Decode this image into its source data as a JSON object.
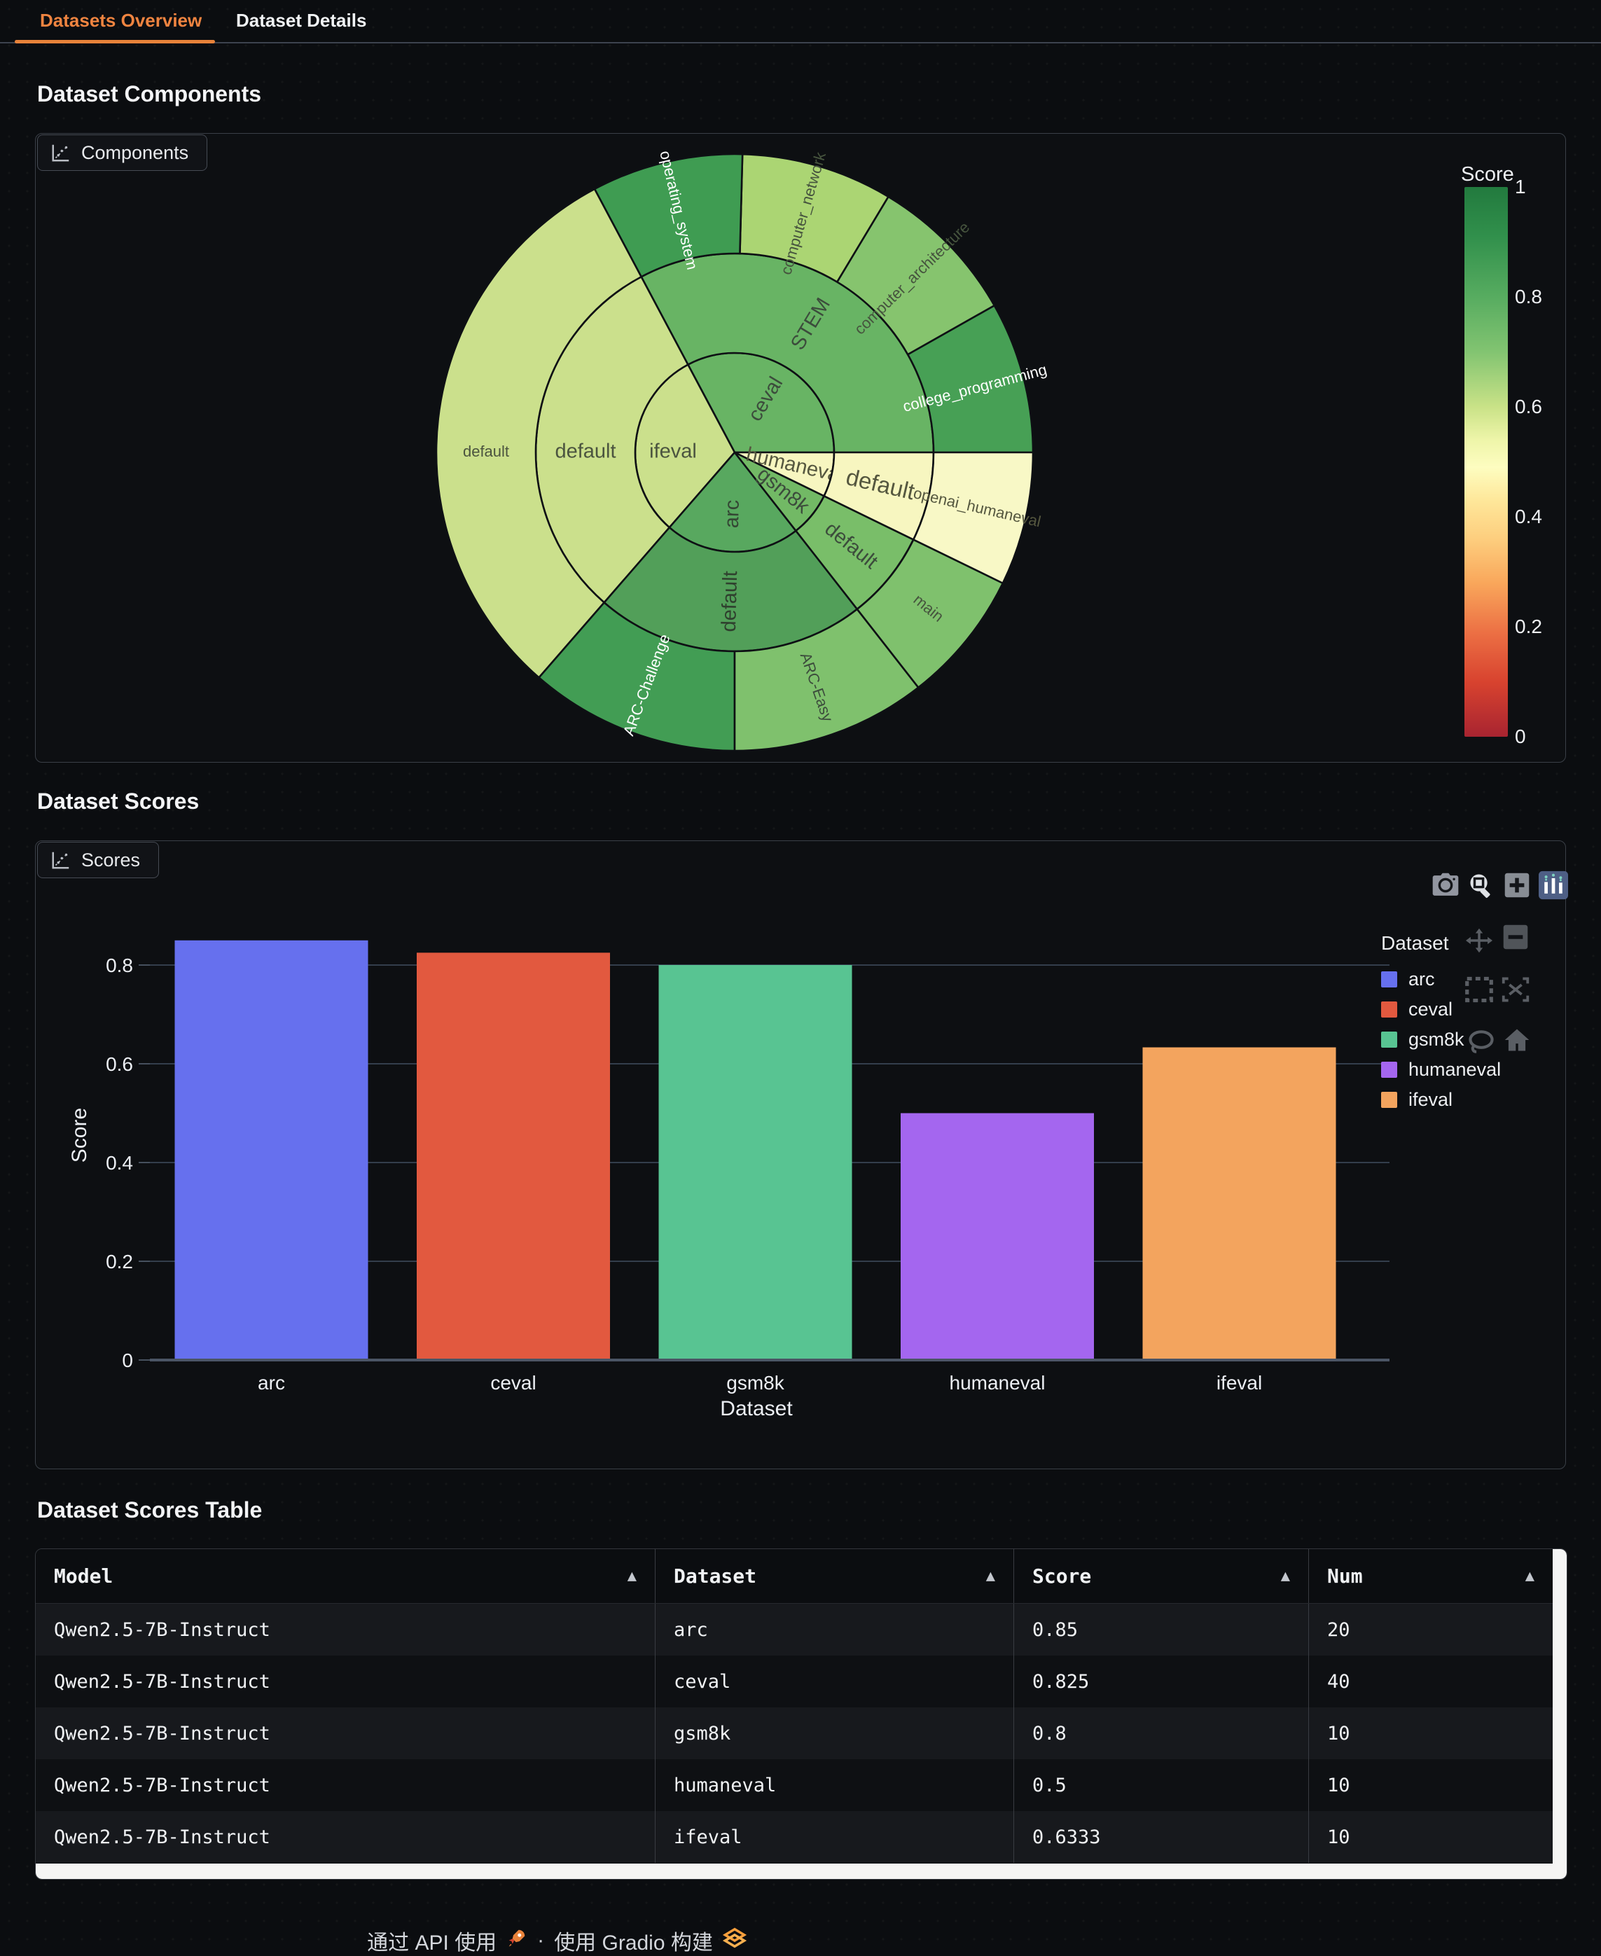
{
  "tabs": [
    {
      "label": "Datasets Overview",
      "active": true
    },
    {
      "label": "Dataset Details",
      "active": false
    }
  ],
  "accent_orange": "#e8823a",
  "sections": {
    "components_heading": "Dataset Components",
    "components_panel_tab": "Components",
    "scores_heading": "Dataset Scores",
    "scores_panel_tab": "Scores",
    "table_heading": "Dataset Scores Table"
  },
  "chart_data": [
    {
      "type": "sunburst",
      "colorbar": {
        "title": "Score",
        "ticks": [
          "1",
          "0.8",
          "0.6",
          "0.4",
          "0.2",
          "0"
        ],
        "tick_values": [
          1,
          0.8,
          0.6,
          0.4,
          0.2,
          0
        ],
        "colormap": "RdYlGn"
      },
      "hierarchy_note": "dataset > subset > split",
      "segments": [
        {
          "label": "ceval",
          "ring": 0,
          "a0": 0,
          "a1": 118,
          "fill": "#68b464",
          "color": "#3c4c3c",
          "mode": "radial"
        },
        {
          "label": "ifeval",
          "ring": 0,
          "a0": 118,
          "a1": 229,
          "fill": "#cbe08c",
          "color": "#4b543f",
          "mode": "horizontal",
          "la": 180
        },
        {
          "label": "arc",
          "ring": 0,
          "a0": 229,
          "a1": 308,
          "fill": "#58a85f",
          "color": "#344634",
          "mode": "radial"
        },
        {
          "label": "gsm8k",
          "ring": 0,
          "a0": 308,
          "a1": 334,
          "fill": "#72b965",
          "color": "#3c4c3c",
          "mode": "radial"
        },
        {
          "label": "humaneval",
          "ring": 0,
          "a0": 334,
          "a1": 360,
          "fill": "#f7f6c0",
          "color": "#55573f",
          "mode": "radial"
        },
        {
          "label": "STEM",
          "ring": 1,
          "a0": 0,
          "a1": 118,
          "fill": "#68b464",
          "color": "#3c4c3c",
          "mode": "radial"
        },
        {
          "label": "default",
          "ring": 1,
          "a0": 118,
          "a1": 229,
          "fill": "#cbe08c",
          "color": "#4b543f",
          "mode": "horizontal",
          "la": 180
        },
        {
          "label": "default",
          "ring": 1,
          "a0": 229,
          "a1": 308,
          "fill": "#529f59",
          "color": "#2f402e",
          "mode": "radial"
        },
        {
          "label": "default",
          "ring": 1,
          "a0": 308,
          "a1": 334,
          "fill": "#79be69",
          "color": "#3c4c3c",
          "mode": "radial"
        },
        {
          "label": "default",
          "ring": 1,
          "a0": 334,
          "a1": 360,
          "fill": "#f7f6c0",
          "color": "#55573f",
          "mode": "radial",
          "size": 33
        },
        {
          "label": "college_programming",
          "ring": 2,
          "a0": 0,
          "a1": 29.5,
          "fill": "#47a055",
          "color": "#ffffff",
          "mode": "radial"
        },
        {
          "label": "computer_architecture",
          "ring": 2,
          "a0": 29.5,
          "a1": 59,
          "fill": "#86c46e",
          "color": "#46543e",
          "mode": "radial"
        },
        {
          "label": "computer_network",
          "ring": 2,
          "a0": 59,
          "a1": 88.5,
          "fill": "#abd573",
          "color": "#46543e",
          "mode": "radial"
        },
        {
          "label": "operating_system",
          "ring": 2,
          "a0": 88.5,
          "a1": 118,
          "fill": "#3f9c52",
          "color": "#ffffff",
          "mode": "radial"
        },
        {
          "label": "default",
          "ring": 2,
          "a0": 118,
          "a1": 229,
          "fill": "#cbe08c",
          "color": "#4b543f",
          "mode": "horizontal",
          "la": 180
        },
        {
          "label": "ARC-Challenge",
          "ring": 2,
          "a0": 229,
          "a1": 270,
          "fill": "#429d54",
          "color": "#ffffff",
          "mode": "radial"
        },
        {
          "label": "ARC-Easy",
          "ring": 2,
          "a0": 270,
          "a1": 308,
          "fill": "#7fc16d",
          "color": "#3c4c3c",
          "mode": "radial"
        },
        {
          "label": "main",
          "ring": 2,
          "a0": 308,
          "a1": 334,
          "fill": "#7fc16d",
          "color": "#46543e",
          "mode": "radial"
        },
        {
          "label": "openai_humaneval",
          "ring": 2,
          "a0": 334,
          "a1": 360,
          "fill": "#f8f8c6",
          "color": "#55573f",
          "mode": "radial"
        }
      ]
    },
    {
      "type": "bar",
      "categories": [
        "arc",
        "ceval",
        "gsm8k",
        "humaneval",
        "ifeval"
      ],
      "values": [
        0.85,
        0.825,
        0.8,
        0.5,
        0.6333
      ],
      "colors": [
        "#6670ee",
        "#e2593f",
        "#58c492",
        "#a466ef",
        "#f3a45e"
      ],
      "xlabel": "Dataset",
      "ylabel": "Score",
      "yticks": [
        0,
        0.2,
        0.4,
        0.6,
        0.8
      ],
      "ylim": [
        0,
        0.9
      ],
      "grid": true,
      "legend": {
        "title": "Dataset",
        "entries": [
          {
            "label": "arc",
            "color": "#6670ee"
          },
          {
            "label": "ceval",
            "color": "#e2593f"
          },
          {
            "label": "gsm8k",
            "color": "#58c492"
          },
          {
            "label": "humaneval",
            "color": "#a466ef"
          },
          {
            "label": "ifeval",
            "color": "#f3a45e"
          }
        ],
        "position": "right"
      }
    }
  ],
  "table": {
    "columns": [
      "Model",
      "Dataset",
      "Score",
      "Num"
    ],
    "sort_icon": "▲",
    "rows": [
      [
        "Qwen2.5-7B-Instruct",
        "arc",
        "0.85",
        "20"
      ],
      [
        "Qwen2.5-7B-Instruct",
        "ceval",
        "0.825",
        "40"
      ],
      [
        "Qwen2.5-7B-Instruct",
        "gsm8k",
        "0.8",
        "10"
      ],
      [
        "Qwen2.5-7B-Instruct",
        "humaneval",
        "0.5",
        "10"
      ],
      [
        "Qwen2.5-7B-Instruct",
        "ifeval",
        "0.6333",
        "10"
      ]
    ]
  },
  "footer": {
    "use_api": "通过 API 使用",
    "separator": "·",
    "built_with": "使用 Gradio 构建"
  }
}
